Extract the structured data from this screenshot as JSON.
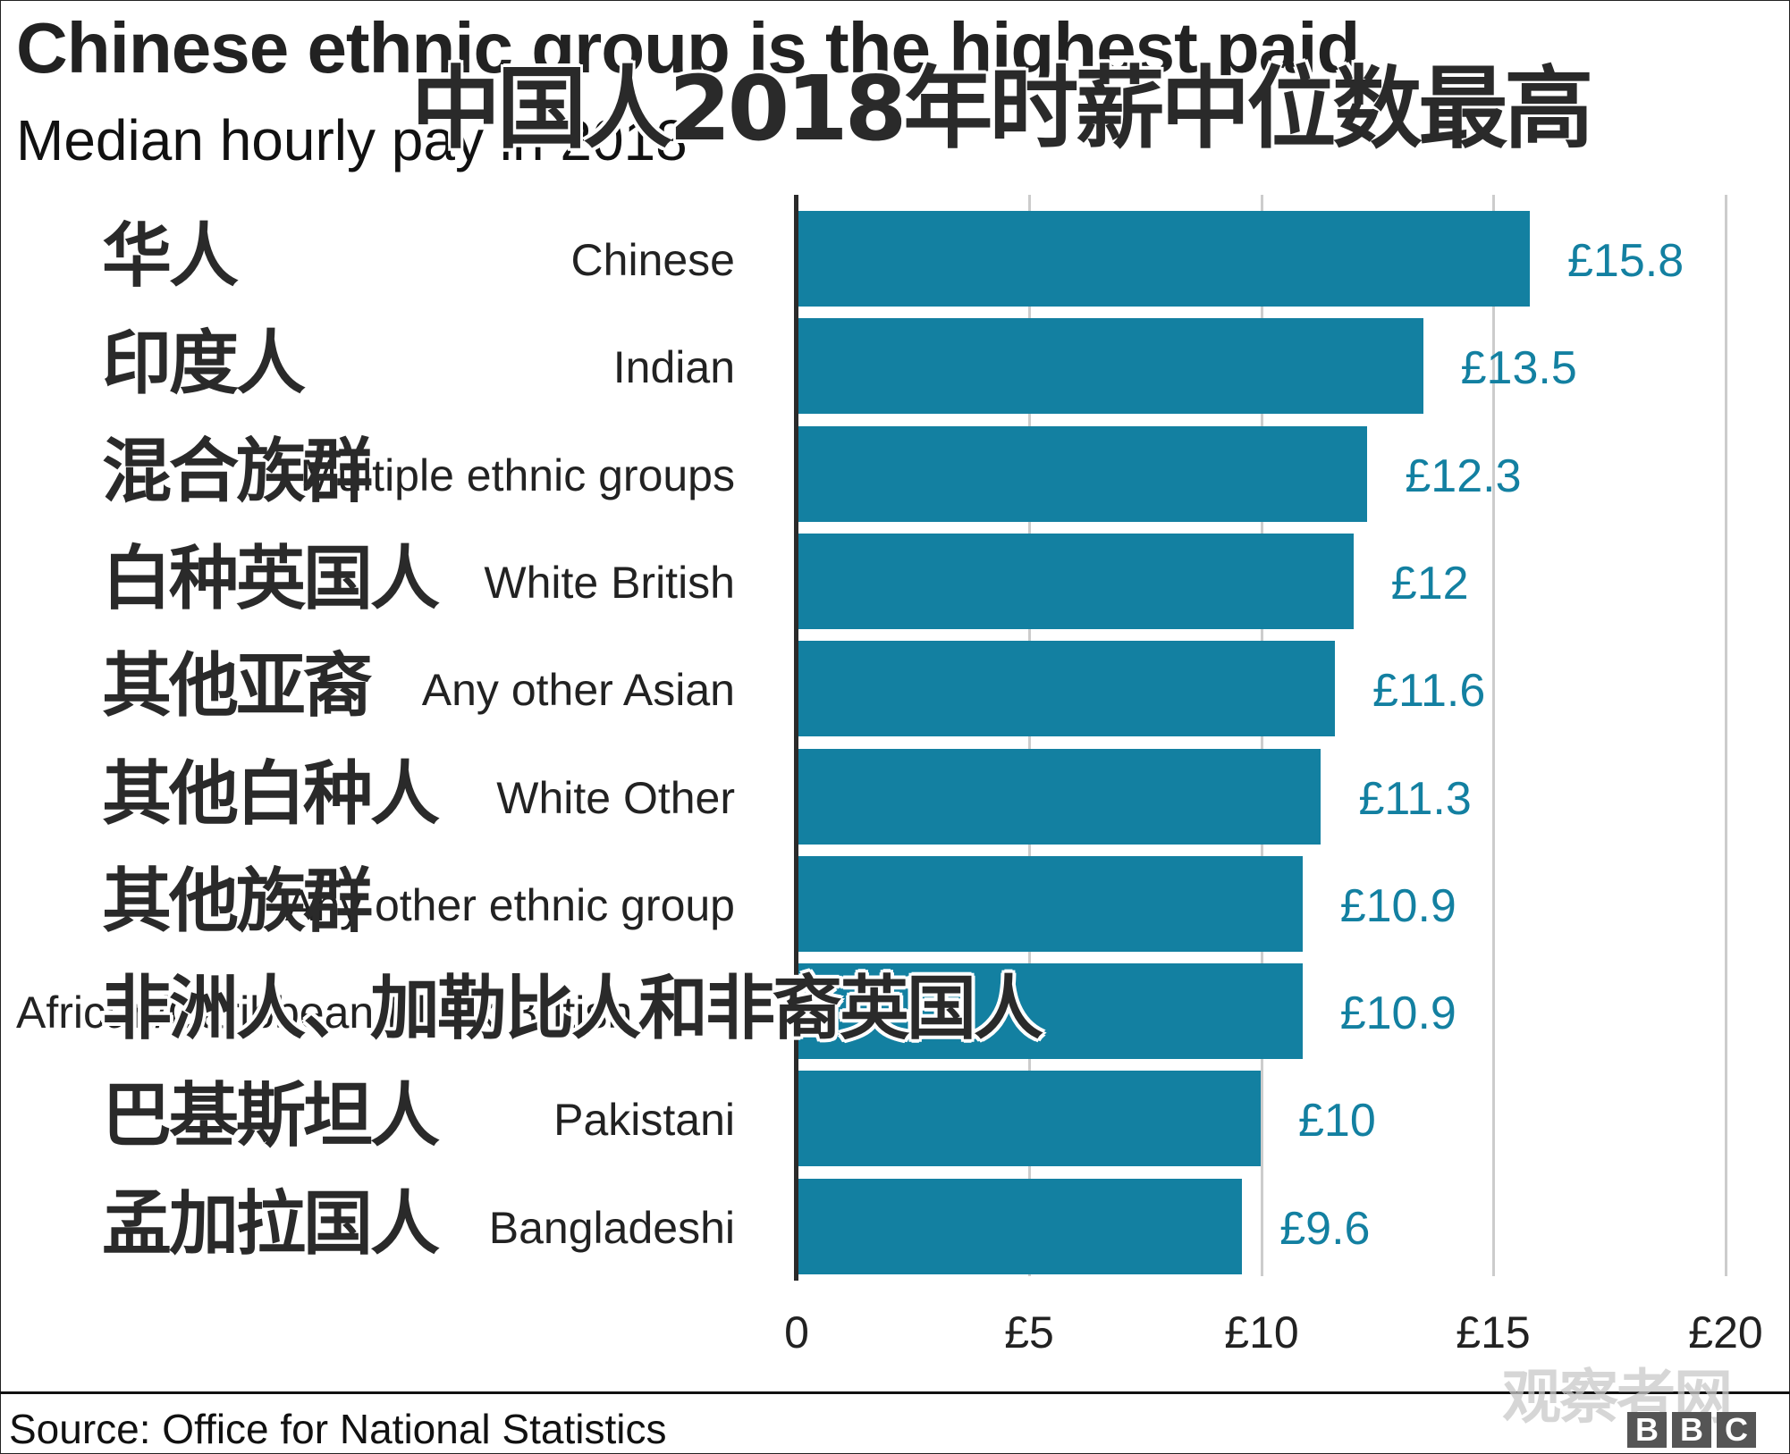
{
  "header": {
    "title_en": "Chinese ethnic group is the highest paid",
    "subtitle_en": "Median hourly pay in 2018",
    "title_zh": "中国人2018年时薪中位数最高"
  },
  "footer": {
    "source": "Source: Office for National Statistics",
    "watermark": "观察者网",
    "logo_letters": [
      "B",
      "B",
      "C"
    ]
  },
  "colors": {
    "bar": "#1380a1",
    "value_label": "#1380a1",
    "grid": "#cccccc",
    "axis": "#2a2a2a"
  },
  "rows": [
    {
      "label_en": "Chinese",
      "label_zh": "华人",
      "value": 15.8,
      "value_label": "£15.8"
    },
    {
      "label_en": "Indian",
      "label_zh": "印度人",
      "value": 13.5,
      "value_label": "£13.5"
    },
    {
      "label_en": "Multiple ethnic groups",
      "label_zh": "混合族群",
      "value": 12.3,
      "value_label": "£12.3"
    },
    {
      "label_en": "White British",
      "label_zh": "白种英国人",
      "value": 12.0,
      "value_label": "£12"
    },
    {
      "label_en": "Any other Asian",
      "label_zh": "其他亚裔",
      "value": 11.6,
      "value_label": "£11.6"
    },
    {
      "label_en": "White Other",
      "label_zh": "其他白种人",
      "value": 11.3,
      "value_label": "£11.3"
    },
    {
      "label_en": "Any other ethnic group",
      "label_zh": "其他族群",
      "value": 10.9,
      "value_label": "£10.9"
    },
    {
      "label_en": "African/Caribbean/Black British",
      "label_zh": "非洲人、加勒比人和非裔英国人",
      "value": 10.9,
      "value_label": "£10.9"
    },
    {
      "label_en": "Pakistani",
      "label_zh": "巴基斯坦人",
      "value": 10.0,
      "value_label": "£10"
    },
    {
      "label_en": "Bangladeshi",
      "label_zh": "孟加拉国人",
      "value": 9.6,
      "value_label": "£9.6"
    }
  ],
  "axis": {
    "ticks": [
      "0",
      "£5",
      "£10",
      "£15",
      "£20"
    ]
  },
  "chart_data": {
    "type": "bar",
    "orientation": "horizontal",
    "title": "Chinese ethnic group is the highest paid",
    "subtitle": "Median hourly pay in 2018",
    "title_zh": "中国人2018年时薪中位数最高",
    "categories": [
      "Chinese",
      "Indian",
      "Multiple ethnic groups",
      "White British",
      "Any other Asian",
      "White Other",
      "Any other ethnic group",
      "African/Caribbean/Black British",
      "Pakistani",
      "Bangladeshi"
    ],
    "categories_zh": [
      "华人",
      "印度人",
      "混合族群",
      "白种英国人",
      "其他亚裔",
      "其他白种人",
      "其他族群",
      "非洲人、加勒比人和非裔英国人",
      "巴基斯坦人",
      "孟加拉国人"
    ],
    "values": [
      15.8,
      13.5,
      12.3,
      12.0,
      11.6,
      11.3,
      10.9,
      10.9,
      10.0,
      9.6
    ],
    "value_labels": [
      "£15.8",
      "£13.5",
      "£12.3",
      "£12",
      "£11.6",
      "£11.3",
      "£10.9",
      "£10.9",
      "£10",
      "£9.6"
    ],
    "xlabel": "",
    "ylabel": "",
    "xlim": [
      0,
      20
    ],
    "xticks": [
      "0",
      "£5",
      "£10",
      "£15",
      "£20"
    ],
    "grid": true,
    "legend": null,
    "source": "Source: Office for National Statistics"
  }
}
